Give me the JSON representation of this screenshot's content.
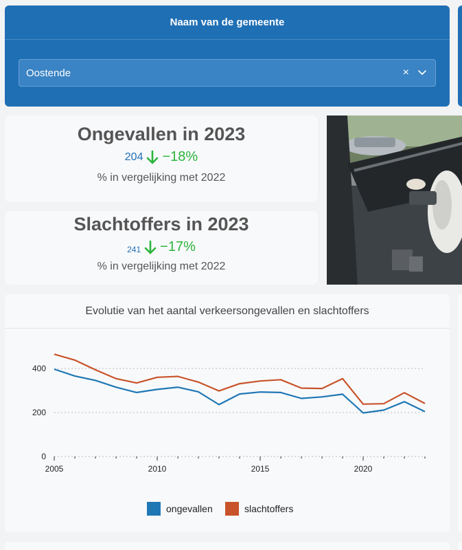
{
  "municipality_card": {
    "header": "Naam van de gemeente",
    "selected": "Oostende",
    "clear_symbol": "×"
  },
  "stats": {
    "accidents": {
      "title": "Ongevallen in 2023",
      "value": "204",
      "change": "−18%",
      "subtitle": "% in vergelijking met 2022"
    },
    "victims": {
      "title": "Slachtoffers in 2023",
      "value": "241",
      "change": "−17%",
      "subtitle": "% in vergelijking met 2022"
    }
  },
  "colors": {
    "brand_blue": "#1f6fb5",
    "positive_green": "#2bb43c",
    "series_blue": "#1f77b4",
    "series_orange": "#c8532a"
  },
  "icons": {
    "clear": "close-icon",
    "dropdown": "chevron-down-icon",
    "trend": "arrow-down-icon"
  },
  "chart_data": {
    "type": "line",
    "title": "Evolutie van het aantal verkeersongevallen en slachtoffers",
    "xlabel": "",
    "ylabel": "",
    "xlim": [
      2005,
      2023
    ],
    "ylim": [
      0,
      420
    ],
    "x_ticks": [
      2005,
      2010,
      2015,
      2020
    ],
    "y_ticks": [
      0,
      200,
      400
    ],
    "grid": "horizontal dotted",
    "legend_position": "bottom",
    "x": [
      2005,
      2006,
      2007,
      2008,
      2009,
      2010,
      2011,
      2012,
      2013,
      2014,
      2015,
      2016,
      2017,
      2018,
      2019,
      2020,
      2021,
      2022,
      2023
    ],
    "series": [
      {
        "name": "ongevallen",
        "color": "#1f77b4",
        "values": [
          397,
          366,
          346,
          315,
          291,
          305,
          315,
          294,
          236,
          284,
          293,
          291,
          264,
          271,
          283,
          198,
          211,
          249,
          204
        ]
      },
      {
        "name": "slachtoffers",
        "color": "#c8532a",
        "values": [
          465,
          438,
          394,
          354,
          334,
          360,
          364,
          338,
          298,
          331,
          343,
          349,
          311,
          309,
          354,
          238,
          240,
          290,
          241
        ]
      }
    ]
  }
}
